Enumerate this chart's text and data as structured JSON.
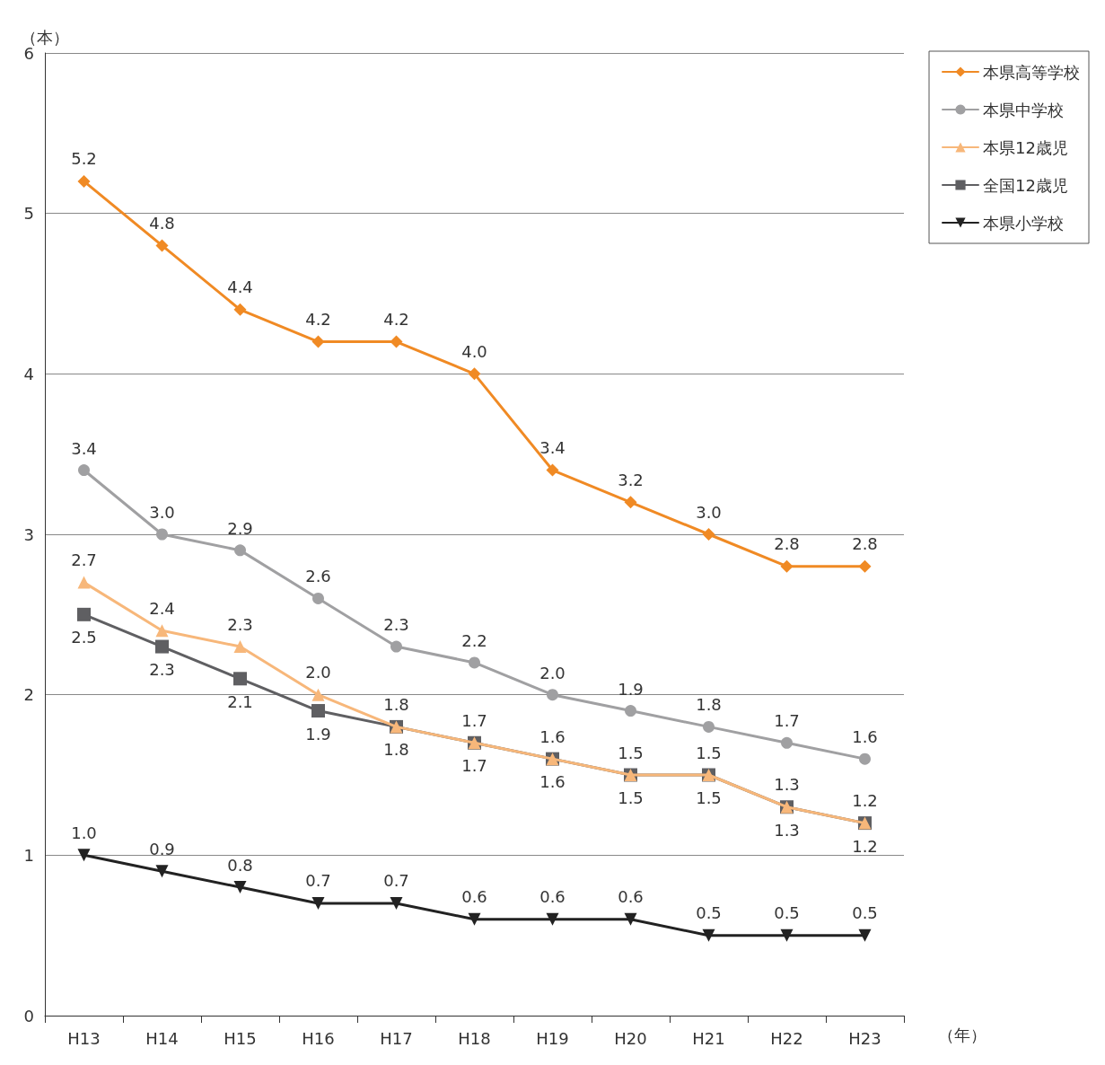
{
  "chart_data": {
    "type": "line",
    "xlabel": "（年）",
    "ylabel": "（本）",
    "categories": [
      "H13",
      "H14",
      "H15",
      "H16",
      "H17",
      "H18",
      "H19",
      "H20",
      "H21",
      "H22",
      "H23"
    ],
    "ylim": [
      0,
      6
    ],
    "yticks": [
      0,
      1,
      2,
      3,
      4,
      5,
      6
    ],
    "grid": "y",
    "legend": "top right",
    "line_style": "solid",
    "series": [
      {
        "name": "本県高等学校",
        "color": "#f08a24",
        "marker": "diamond",
        "values": [
          5.2,
          4.8,
          4.4,
          4.2,
          4.2,
          4.0,
          3.4,
          3.2,
          3.0,
          2.8,
          2.8
        ],
        "value_labels": [
          "5.2",
          "4.8",
          "4.4",
          "4.2",
          "4.2",
          "4.0",
          "3.4",
          "3.2",
          "3.0",
          "2.8",
          "2.8"
        ]
      },
      {
        "name": "本県中学校",
        "color": "#a0a0a2",
        "marker": "circle",
        "values": [
          3.4,
          3.0,
          2.9,
          2.6,
          2.3,
          2.2,
          2.0,
          1.9,
          1.8,
          1.7,
          1.6
        ],
        "value_labels": [
          "3.4",
          "3.0",
          "2.9",
          "2.6",
          "2.3",
          "2.2",
          "2.0",
          "1.9",
          "1.8",
          "1.7",
          "1.6"
        ]
      },
      {
        "name": "本県12歳児",
        "color": "#f7b77a",
        "marker": "triangle",
        "values": [
          2.7,
          2.4,
          2.3,
          2.0,
          1.8,
          1.7,
          1.6,
          1.5,
          1.5,
          1.3,
          1.2
        ],
        "value_labels": [
          "2.7",
          "2.4",
          "2.3",
          "2.0",
          "1.8",
          "1.7",
          "1.6",
          "1.5",
          "1.5",
          "1.3",
          "1.2"
        ]
      },
      {
        "name": "全国12歳児",
        "color": "#5f5f62",
        "marker": "square",
        "values": [
          2.5,
          2.3,
          2.1,
          1.9,
          1.8,
          1.7,
          1.6,
          1.5,
          1.5,
          1.3,
          1.2
        ],
        "value_labels": [
          "2.5",
          "2.3",
          "2.1",
          "1.9",
          "1.8",
          "1.7",
          "1.6",
          "1.5",
          "1.5",
          "1.3",
          "1.2"
        ]
      },
      {
        "name": "本県小学校",
        "color": "#222222",
        "marker": "triangle-down",
        "values": [
          1.0,
          0.9,
          0.8,
          0.7,
          0.7,
          0.6,
          0.6,
          0.6,
          0.5,
          0.5,
          0.5
        ],
        "value_labels": [
          "1.0",
          "0.9",
          "0.8",
          "0.7",
          "0.7",
          "0.6",
          "0.6",
          "0.6",
          "0.5",
          "0.5",
          "0.5"
        ]
      }
    ]
  }
}
